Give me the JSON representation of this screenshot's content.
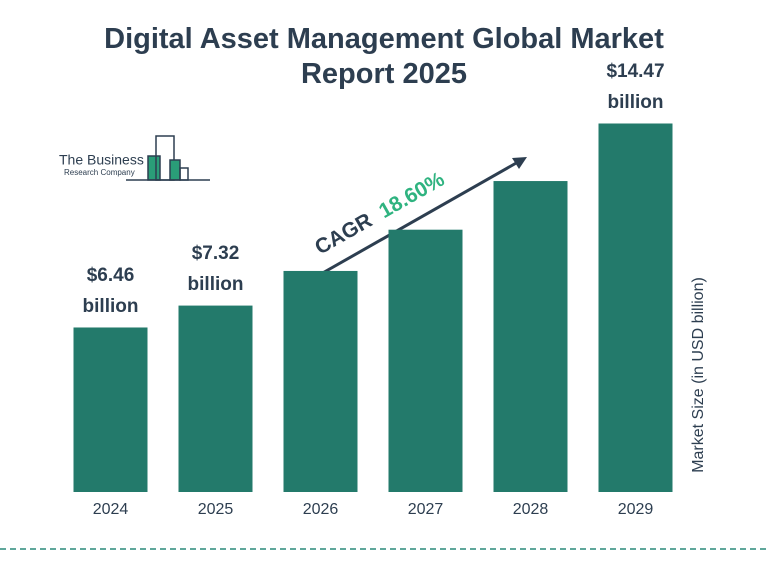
{
  "logo": {
    "line1": "The Business",
    "line2": "Research Company"
  },
  "chart_data": {
    "type": "bar",
    "title": "Digital Asset Management Global Market Report 2025",
    "y_label": "Market Size (in USD billion)",
    "annotation": {
      "label": "CAGR",
      "value": "18.60%"
    },
    "categories": [
      "2024",
      "2025",
      "2026",
      "2027",
      "2028",
      "2029"
    ],
    "values": [
      6.46,
      7.32,
      8.68,
      10.3,
      12.21,
      14.47
    ],
    "value_labels": [
      "$6.46 billion",
      "$7.32 billion",
      null,
      null,
      null,
      "$14.47 billion"
    ],
    "color": "#237a6b",
    "ylim": [
      0,
      15
    ]
  }
}
